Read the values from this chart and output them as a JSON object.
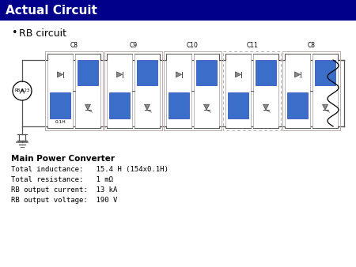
{
  "title": "Actual Circuit",
  "title_bg": "#00008B",
  "title_color": "#FFFFFF",
  "bullet_text": "RB circuit",
  "cell_labels": [
    "C8",
    "C9",
    "C10",
    "C11",
    "C8"
  ],
  "cell_dashed": [
    false,
    false,
    false,
    true,
    false
  ],
  "source_label": "RB.A23",
  "inductor_label": "0.1H",
  "info_title": "Main Power Converter",
  "info_lines": [
    [
      "Total inductance:   15.4 H (154x0.1H)"
    ],
    [
      "Total resistance:   1 mΩ"
    ],
    [
      "RB output current:  13 kA"
    ],
    [
      "RB output voltage:  190 V"
    ]
  ],
  "bg_color": "#FFFFFF",
  "blue_color": "#3B6EC8",
  "cell_fill": "#F2F2F2",
  "wire_color": "#555555",
  "border_solid": "#BBAAAA",
  "border_dashed": "#BBAAAA",
  "sub_fill": "#E8E8E8",
  "diode_fill": "#999999"
}
